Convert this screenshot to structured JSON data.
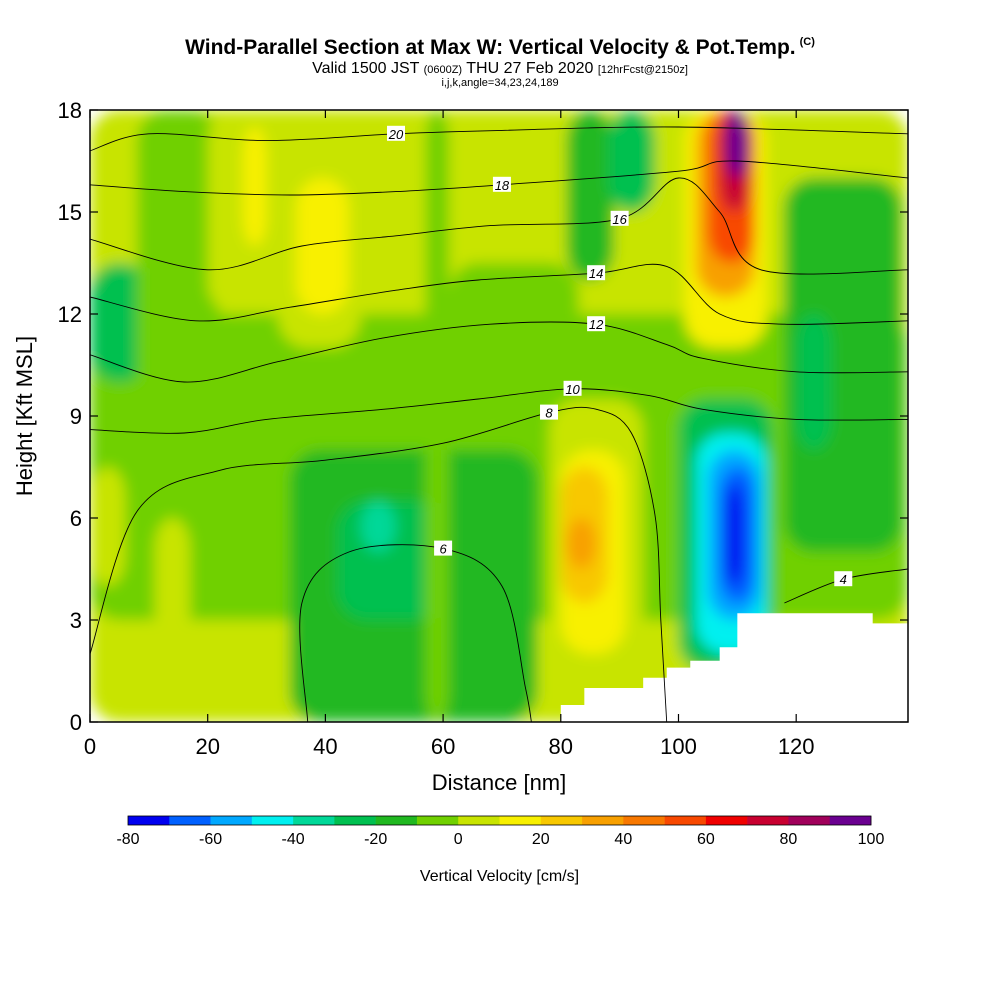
{
  "title": "Wind-Parallel Section at Max W: Vertical Velocity & Pot.Temp.",
  "copyright": "(C)",
  "subtitle_main": "Valid 1500 JST ",
  "subtitle_utc": "(0600Z)",
  "subtitle_date": " THU 27 Feb 2020 ",
  "subtitle_fcst": "[12hrFcst@2150z]",
  "subtitle2": "i,j,k,angle=34,23,24,189",
  "chart_data": {
    "type": "heatmap",
    "title": "Wind-Parallel Section at Max W: Vertical Velocity & Pot.Temp.",
    "xlabel": "Distance [nm]",
    "ylabel": "Height [Kft MSL]",
    "xlim": [
      0,
      139
    ],
    "ylim": [
      0,
      18
    ],
    "xticks": [
      "0",
      "20",
      "40",
      "60",
      "80",
      "100",
      "120"
    ],
    "yticks": [
      "0",
      "3",
      "6",
      "9",
      "12",
      "15",
      "18"
    ],
    "colorbar": {
      "label": "Vertical Velocity [cm/s]",
      "tick_labels": [
        "-80",
        "-60",
        "-40",
        "-20",
        "0",
        "20",
        "40",
        "60",
        "80",
        "100"
      ],
      "levels": [
        -80,
        -70,
        -60,
        -50,
        -40,
        -30,
        -20,
        -10,
        0,
        10,
        20,
        30,
        40,
        50,
        60,
        70,
        80,
        90,
        100
      ],
      "colors": [
        "#0000f0",
        "#0060ff",
        "#00a8ff",
        "#00f0f0",
        "#00d898",
        "#00c050",
        "#20b820",
        "#70d000",
        "#c8e400",
        "#f8f000",
        "#f8c800",
        "#f8a000",
        "#f87800",
        "#f84800",
        "#f00000",
        "#c80030",
        "#a0005a",
        "#6a0090"
      ]
    },
    "vertical_velocity_cells": [
      {
        "x": 0,
        "y": 0,
        "dx": 139,
        "dy": 18,
        "w": 5
      },
      {
        "x": 0,
        "y": 3,
        "dx": 139,
        "dy": 9,
        "w": -5
      },
      {
        "x": 34,
        "y": 0,
        "dx": 42,
        "dy": 8,
        "w": -15
      },
      {
        "x": 42,
        "y": 3,
        "dx": 18,
        "dy": 3.5,
        "w": -25
      },
      {
        "x": 46,
        "y": 5,
        "dx": 6,
        "dy": 1.5,
        "w": -35
      },
      {
        "x": 0,
        "y": 10,
        "dx": 10,
        "dy": 3.5,
        "w": -25
      },
      {
        "x": 0,
        "y": 4,
        "dx": 6,
        "dy": 3.5,
        "w": 5
      },
      {
        "x": 8,
        "y": 9,
        "dx": 14,
        "dy": 9,
        "w": -5
      },
      {
        "x": 11,
        "y": 0,
        "dx": 6,
        "dy": 6,
        "w": 5
      },
      {
        "x": 20,
        "y": 12,
        "dx": 12,
        "dy": 6,
        "w": 5
      },
      {
        "x": 26,
        "y": 14,
        "dx": 4,
        "dy": 3.5,
        "w": 15
      },
      {
        "x": 32,
        "y": 11,
        "dx": 14,
        "dy": 7,
        "w": 5
      },
      {
        "x": 35,
        "y": 12,
        "dx": 9,
        "dy": 4,
        "w": 15
      },
      {
        "x": 57,
        "y": 0,
        "dx": 4,
        "dy": 18,
        "w": -5
      },
      {
        "x": 61,
        "y": 10,
        "dx": 22,
        "dy": 3.5,
        "w": -5
      },
      {
        "x": 81,
        "y": 13,
        "dx": 8,
        "dy": 5,
        "w": -15
      },
      {
        "x": 88,
        "y": 15,
        "dx": 8,
        "dy": 3,
        "w": -25
      },
      {
        "x": 78,
        "y": 1,
        "dx": 16,
        "dy": 8.5,
        "w": 5
      },
      {
        "x": 80,
        "y": 2,
        "dx": 11,
        "dy": 6,
        "w": 15
      },
      {
        "x": 80,
        "y": 3.5,
        "dx": 8,
        "dy": 4,
        "w": 25
      },
      {
        "x": 81,
        "y": 4.5,
        "dx": 5,
        "dy": 1.5,
        "w": 35
      },
      {
        "x": 101,
        "y": 11,
        "dx": 14,
        "dy": 7,
        "w": 15
      },
      {
        "x": 103,
        "y": 12.5,
        "dx": 10,
        "dy": 5.5,
        "w": 35
      },
      {
        "x": 105,
        "y": 13.5,
        "dx": 8,
        "dy": 4.5,
        "w": 55
      },
      {
        "x": 107,
        "y": 15,
        "dx": 5,
        "dy": 3,
        "w": 75
      },
      {
        "x": 108,
        "y": 16,
        "dx": 4,
        "dy": 2,
        "w": 95
      },
      {
        "x": 100,
        "y": 1.5,
        "dx": 16,
        "dy": 8,
        "w": -25
      },
      {
        "x": 103,
        "y": 2,
        "dx": 12,
        "dy": 6.5,
        "w": -45
      },
      {
        "x": 105,
        "y": 3,
        "dx": 9,
        "dy": 5,
        "w": -55
      },
      {
        "x": 107,
        "y": 3.5,
        "dx": 6,
        "dy": 4,
        "w": -65
      },
      {
        "x": 108,
        "y": 4,
        "dx": 3,
        "dy": 3,
        "w": -75
      },
      {
        "x": 118,
        "y": 5,
        "dx": 20,
        "dy": 11,
        "w": -15
      },
      {
        "x": 120,
        "y": 8,
        "dx": 6,
        "dy": 4,
        "w": -25
      }
    ],
    "potential_temperature_contours": [
      {
        "label": "4",
        "pts": [
          [
            118,
            3.5
          ],
          [
            128,
            4.2
          ],
          [
            139,
            4.5
          ]
        ]
      },
      {
        "label": "6",
        "pts": [
          [
            37,
            0
          ],
          [
            36,
            3.5
          ],
          [
            44,
            5
          ],
          [
            60,
            5.1
          ],
          [
            70,
            4
          ],
          [
            74,
            1
          ],
          [
            75,
            0
          ]
        ]
      },
      {
        "label": "8",
        "pts": [
          [
            0,
            2
          ],
          [
            8,
            6.2
          ],
          [
            22,
            7.4
          ],
          [
            40,
            7.7
          ],
          [
            60,
            8.2
          ],
          [
            78,
            9.1
          ],
          [
            86,
            9.2
          ],
          [
            92,
            8.5
          ],
          [
            96,
            6.1
          ],
          [
            97,
            3
          ],
          [
            98,
            0
          ]
        ]
      },
      {
        "label": "10",
        "pts": [
          [
            0,
            8.6
          ],
          [
            16,
            8.5
          ],
          [
            30,
            8.9
          ],
          [
            50,
            9.2
          ],
          [
            66,
            9.5
          ],
          [
            82,
            9.8
          ],
          [
            95,
            9.6
          ],
          [
            104,
            9.2
          ],
          [
            120,
            8.9
          ],
          [
            139,
            8.9
          ]
        ]
      },
      {
        "label": "12",
        "pts": [
          [
            0,
            10.8
          ],
          [
            16,
            10
          ],
          [
            32,
            10.6
          ],
          [
            50,
            11.3
          ],
          [
            68,
            11.7
          ],
          [
            86,
            11.7
          ],
          [
            98,
            11.1
          ],
          [
            104,
            10.7
          ],
          [
            120,
            10.3
          ],
          [
            139,
            10.3
          ]
        ]
      },
      {
        "label": "14",
        "pts": [
          [
            0,
            12.5
          ],
          [
            18,
            11.8
          ],
          [
            34,
            12.2
          ],
          [
            52,
            12.7
          ],
          [
            66,
            13
          ],
          [
            86,
            13.2
          ],
          [
            98,
            13.4
          ],
          [
            107,
            12
          ],
          [
            118,
            11.7
          ],
          [
            139,
            11.8
          ]
        ]
      },
      {
        "label": "16",
        "pts": [
          [
            0,
            14.2
          ],
          [
            20,
            13.3
          ],
          [
            36,
            14
          ],
          [
            52,
            14.3
          ],
          [
            68,
            14.6
          ],
          [
            90,
            14.8
          ],
          [
            100,
            16
          ],
          [
            107,
            15
          ],
          [
            114,
            13.3
          ],
          [
            139,
            13.3
          ]
        ]
      },
      {
        "label": "18",
        "pts": [
          [
            0,
            15.8
          ],
          [
            16,
            15.6
          ],
          [
            34,
            15.5
          ],
          [
            52,
            15.6
          ],
          [
            70,
            15.8
          ],
          [
            100,
            16.2
          ],
          [
            110,
            16.5
          ],
          [
            139,
            16
          ]
        ]
      },
      {
        "label": "20",
        "pts": [
          [
            0,
            16.8
          ],
          [
            10,
            17.3
          ],
          [
            30,
            17.1
          ],
          [
            52,
            17.3
          ],
          [
            70,
            17.4
          ],
          [
            100,
            17.5
          ],
          [
            139,
            17.3
          ]
        ]
      }
    ],
    "terrain": [
      [
        75,
        0
      ],
      [
        80,
        0.5
      ],
      [
        84,
        1
      ],
      [
        94,
        1.3
      ],
      [
        98,
        1.6
      ],
      [
        102,
        1.8
      ],
      [
        107,
        2.2
      ],
      [
        110,
        3.2
      ],
      [
        133,
        3.2
      ],
      [
        133,
        2.9
      ],
      [
        139,
        2.9
      ]
    ]
  }
}
